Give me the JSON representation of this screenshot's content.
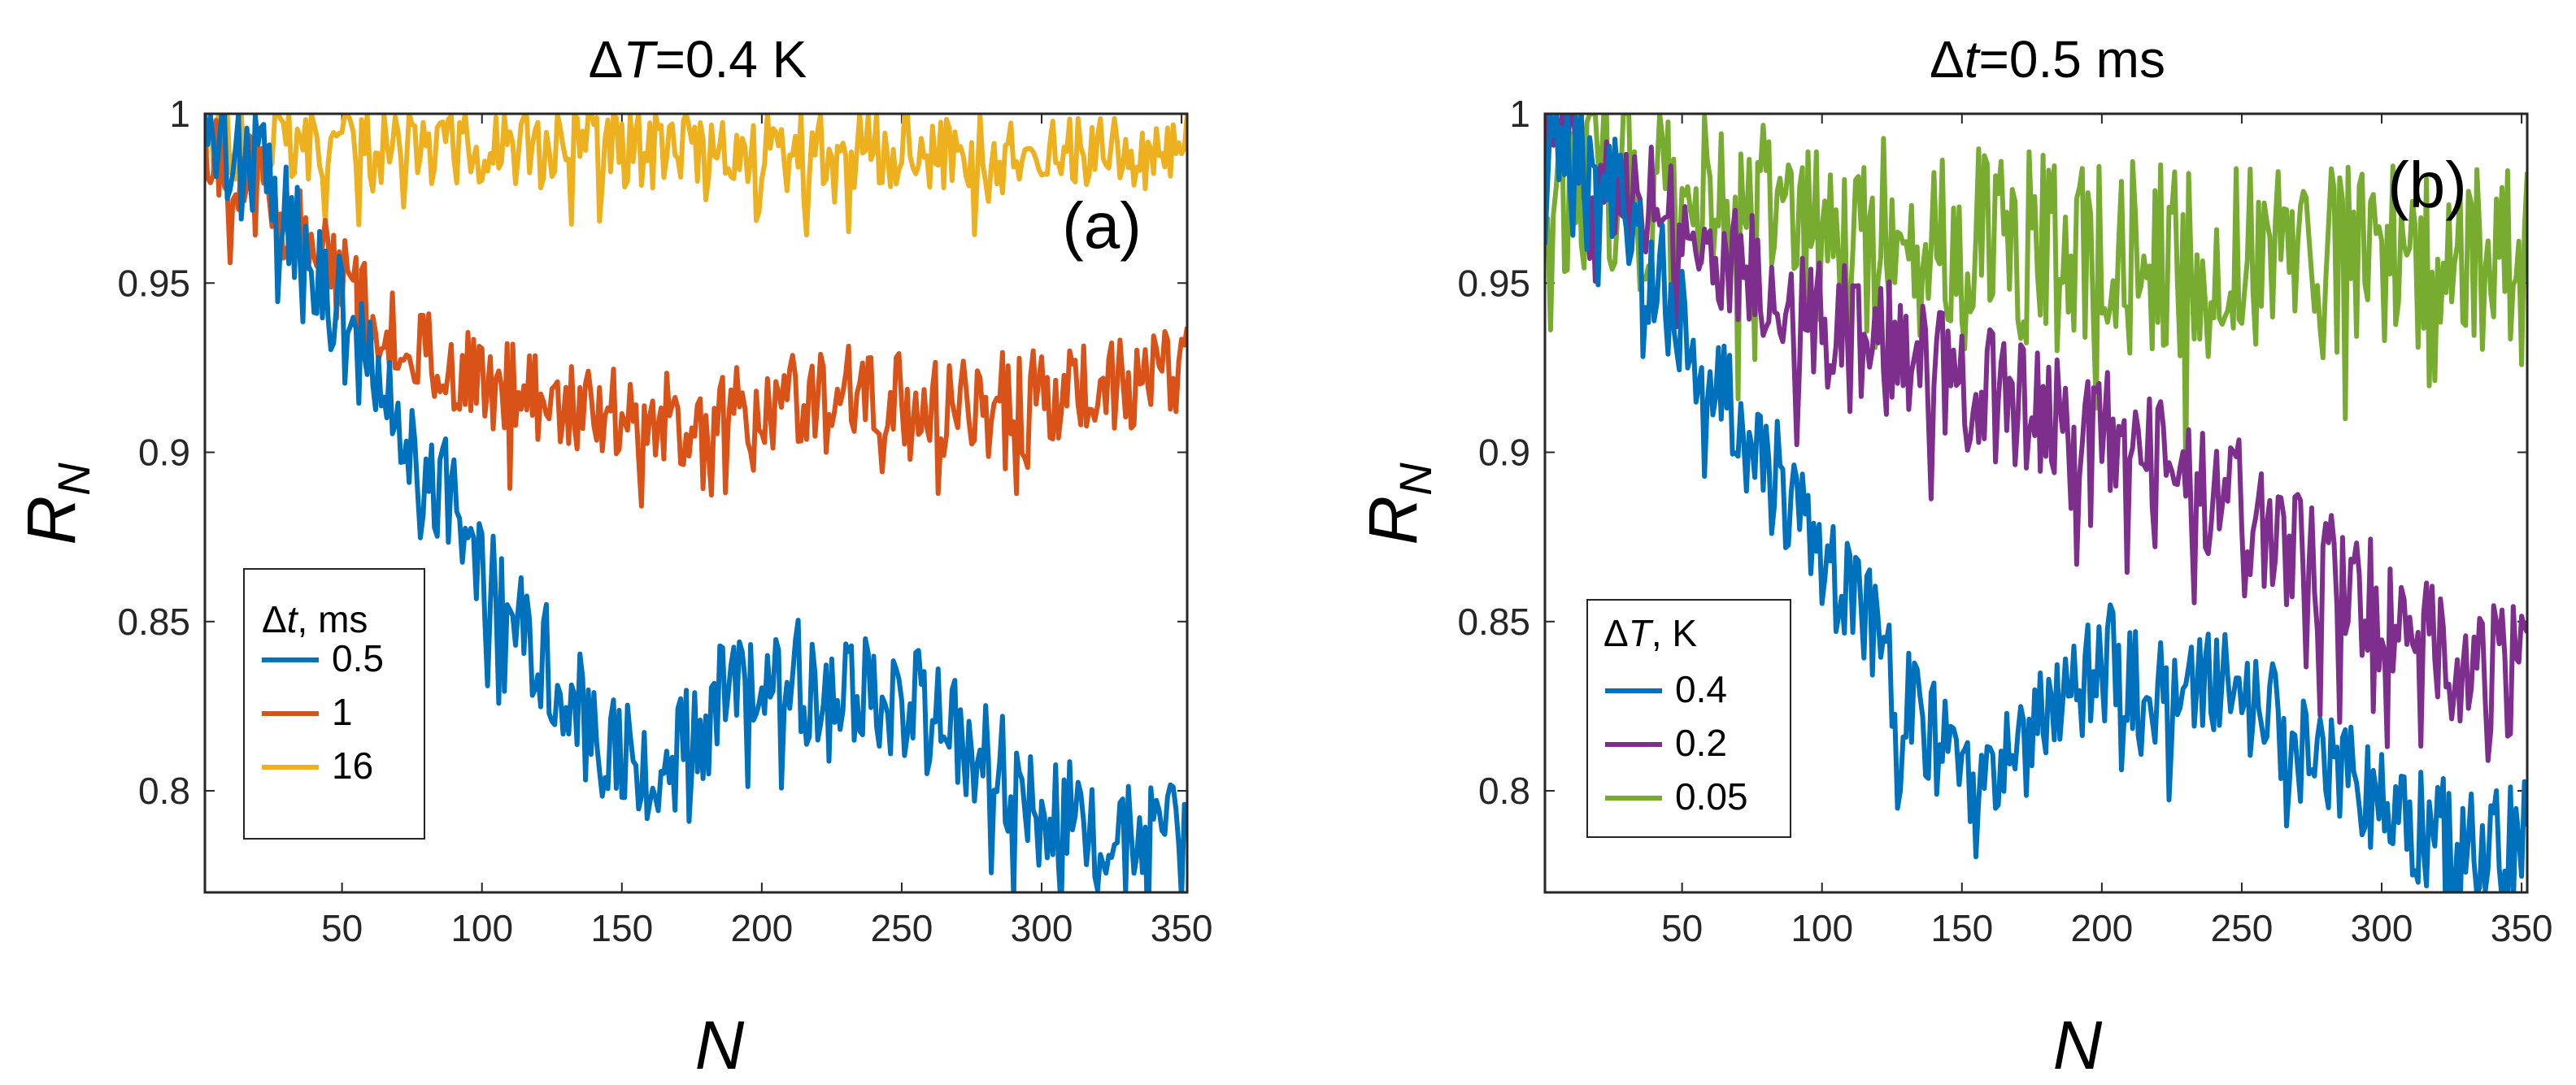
{
  "chart_data": [
    {
      "type": "line",
      "panel_label": "(a)",
      "title": {
        "prefix": "Δ",
        "var": "T",
        "value": "=0.4 K"
      },
      "xlabel": "N",
      "ylabel": {
        "main": "R",
        "sub": "N"
      },
      "xlim": [
        1,
        352
      ],
      "ylim": [
        0.77,
        1.0
      ],
      "xticks": [
        50,
        100,
        150,
        200,
        250,
        300,
        350
      ],
      "xtick_labels": [
        "50",
        "100",
        "150",
        "200",
        "250",
        "300",
        "350"
      ],
      "yticks": [
        0.8,
        0.85,
        0.9,
        0.95,
        1.0
      ],
      "ytick_labels": [
        "0.8",
        "0.85",
        "0.9",
        "0.95",
        "1"
      ],
      "legend": {
        "position": "bottom-left",
        "title_prefix": "Δ",
        "title_var": "t",
        "title_unit": ", ms"
      },
      "series": [
        {
          "name": "0.5",
          "color": "#0072BD",
          "x": [
            1,
            10,
            25,
            40,
            55,
            70,
            85,
            100,
            115,
            130,
            145,
            160,
            175,
            190,
            200,
            210,
            225,
            240,
            255,
            270,
            285,
            300,
            315,
            330,
            345,
            352
          ],
          "y": [
            1.0,
            0.995,
            0.98,
            0.955,
            0.93,
            0.91,
            0.89,
            0.87,
            0.85,
            0.83,
            0.81,
            0.805,
            0.815,
            0.83,
            0.838,
            0.835,
            0.825,
            0.83,
            0.825,
            0.815,
            0.805,
            0.795,
            0.79,
            0.785,
            0.785,
            0.785
          ],
          "noise": 0.018
        },
        {
          "name": "1",
          "color": "#D95319",
          "x": [
            1,
            10,
            25,
            40,
            55,
            70,
            85,
            100,
            115,
            130,
            145,
            160,
            175,
            190,
            205,
            220,
            240,
            260,
            280,
            300,
            320,
            340,
            352
          ],
          "y": [
            0.99,
            0.985,
            0.975,
            0.96,
            0.945,
            0.935,
            0.925,
            0.92,
            0.918,
            0.915,
            0.912,
            0.91,
            0.91,
            0.912,
            0.915,
            0.918,
            0.918,
            0.915,
            0.915,
            0.917,
            0.918,
            0.922,
            0.928
          ],
          "noise": 0.014
        },
        {
          "name": "16",
          "color": "#EDB120",
          "x": [
            1,
            50,
            100,
            150,
            200,
            250,
            300,
            352
          ],
          "y": [
            0.992,
            0.992,
            0.99,
            0.99,
            0.99,
            0.99,
            0.988,
            0.99
          ],
          "noise": 0.012
        }
      ]
    },
    {
      "type": "line",
      "panel_label": "(b)",
      "title": {
        "prefix": "Δ",
        "var": "t",
        "value": "=0.5 ms"
      },
      "xlabel": "N",
      "ylabel": {
        "main": "R",
        "sub": "N"
      },
      "xlim": [
        1,
        352
      ],
      "ylim": [
        0.77,
        1.0
      ],
      "xticks": [
        50,
        100,
        150,
        200,
        250,
        300,
        350
      ],
      "xtick_labels": [
        "50",
        "100",
        "150",
        "200",
        "250",
        "300",
        "350"
      ],
      "yticks": [
        0.8,
        0.85,
        0.9,
        0.95,
        1.0
      ],
      "ytick_labels": [
        "0.8",
        "0.85",
        "0.9",
        "0.95",
        "1"
      ],
      "legend": {
        "position": "bottom-left",
        "title_prefix": "Δ",
        "title_var": "T",
        "title_unit": ", K"
      },
      "series": [
        {
          "name": "0.4",
          "color": "#0072BD",
          "x": [
            1,
            10,
            25,
            40,
            55,
            70,
            85,
            100,
            115,
            130,
            145,
            160,
            175,
            190,
            200,
            210,
            225,
            240,
            255,
            270,
            285,
            300,
            315,
            330,
            345,
            352
          ],
          "y": [
            1.0,
            0.995,
            0.98,
            0.955,
            0.93,
            0.91,
            0.89,
            0.87,
            0.85,
            0.83,
            0.81,
            0.805,
            0.815,
            0.83,
            0.838,
            0.835,
            0.825,
            0.83,
            0.825,
            0.815,
            0.805,
            0.795,
            0.79,
            0.785,
            0.785,
            0.785
          ],
          "noise": 0.018
        },
        {
          "name": "0.2",
          "color": "#7E2F8E",
          "x": [
            1,
            25,
            50,
            75,
            100,
            125,
            150,
            175,
            200,
            225,
            250,
            270,
            290,
            305,
            320,
            335,
            352
          ],
          "y": [
            1.0,
            0.985,
            0.968,
            0.952,
            0.94,
            0.93,
            0.92,
            0.912,
            0.905,
            0.895,
            0.885,
            0.87,
            0.86,
            0.85,
            0.84,
            0.835,
            0.835
          ],
          "noise": 0.02
        },
        {
          "name": "0.05",
          "color": "#77AC30",
          "x": [
            1,
            50,
            100,
            150,
            200,
            250,
            300,
            352
          ],
          "y": [
            0.985,
            0.972,
            0.965,
            0.96,
            0.958,
            0.955,
            0.955,
            0.955
          ],
          "noise": 0.03
        }
      ]
    }
  ]
}
